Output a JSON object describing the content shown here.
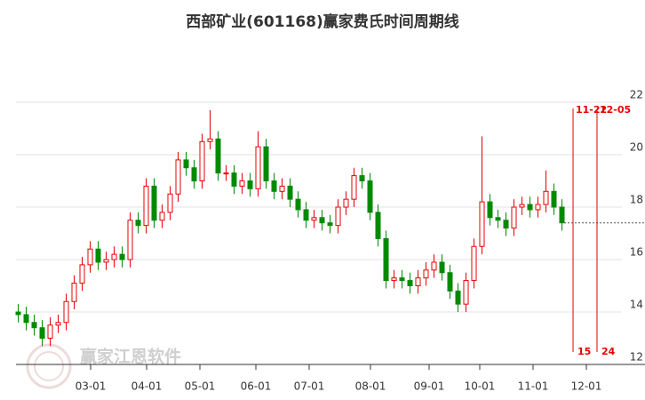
{
  "chart_data": {
    "type": "candlestick",
    "title": "西部矿业(601168)赢家费氏时间周期线",
    "watermark": "赢家江恩软件",
    "up_color": "#e60000",
    "down_color": "#008a00",
    "xlim": [
      0,
      236
    ],
    "ylim": [
      12,
      22
    ],
    "yticks": [
      12,
      14,
      16,
      18,
      20,
      22
    ],
    "xticks": [
      {
        "value": 28,
        "label": "03-01"
      },
      {
        "value": 49,
        "label": "04-01"
      },
      {
        "value": 69,
        "label": "05-01"
      },
      {
        "value": 90,
        "label": "06-01"
      },
      {
        "value": 110,
        "label": "07-01"
      },
      {
        "value": 133,
        "label": "08-01"
      },
      {
        "value": 155,
        "label": "09-01"
      },
      {
        "value": 174,
        "label": "10-01"
      },
      {
        "value": 194,
        "label": "11-01"
      },
      {
        "value": 214,
        "label": "12-01"
      }
    ],
    "grid": true,
    "x": [
      0,
      3,
      6,
      9,
      12,
      15,
      18,
      21,
      24,
      27,
      30,
      33,
      36,
      39,
      42,
      45,
      48,
      51,
      54,
      57,
      60,
      63,
      66,
      69,
      72,
      75,
      78,
      81,
      84,
      87,
      90,
      93,
      96,
      99,
      102,
      105,
      108,
      111,
      114,
      117,
      120,
      123,
      126,
      129,
      132,
      135,
      138,
      141,
      144,
      147,
      150,
      153,
      156,
      159,
      162,
      165,
      168,
      171,
      174,
      177,
      180,
      183,
      186,
      189,
      192,
      195,
      198,
      201,
      204
    ],
    "open": [
      14.0,
      13.9,
      13.6,
      13.4,
      13.0,
      13.5,
      13.6,
      14.4,
      15.1,
      15.8,
      16.4,
      15.9,
      16.0,
      16.2,
      16.0,
      17.5,
      17.3,
      18.8,
      17.5,
      17.8,
      18.5,
      19.8,
      19.5,
      19.0,
      20.5,
      20.6,
      19.3,
      19.3,
      18.8,
      19.0,
      18.7,
      20.3,
      19.0,
      18.6,
      18.8,
      18.3,
      17.9,
      17.5,
      17.6,
      17.4,
      17.3,
      18.0,
      18.3,
      19.2,
      19.0,
      17.8,
      16.8,
      15.2,
      15.3,
      15.2,
      15.0,
      15.3,
      15.6,
      15.9,
      15.5,
      14.8,
      14.3,
      15.2,
      16.5,
      18.2,
      17.6,
      17.5,
      17.2,
      18.0,
      18.1,
      17.9,
      18.1,
      18.6,
      18.0
    ],
    "high": [
      14.3,
      14.2,
      13.9,
      13.7,
      13.8,
      13.9,
      14.7,
      15.4,
      16.1,
      16.7,
      16.7,
      16.3,
      16.5,
      16.5,
      17.8,
      17.8,
      19.1,
      19.1,
      18.1,
      18.8,
      20.1,
      20.1,
      19.8,
      20.8,
      21.7,
      20.9,
      19.6,
      19.6,
      19.3,
      19.3,
      20.9,
      20.6,
      19.3,
      19.1,
      19.1,
      18.6,
      18.2,
      17.9,
      17.9,
      17.7,
      18.3,
      18.6,
      19.5,
      19.5,
      19.3,
      18.1,
      17.1,
      15.6,
      15.6,
      15.5,
      15.6,
      15.9,
      16.2,
      16.2,
      15.8,
      15.1,
      15.5,
      16.8,
      20.7,
      18.5,
      17.9,
      17.8,
      18.3,
      18.4,
      18.4,
      18.4,
      19.4,
      18.9,
      18.3
    ],
    "low": [
      13.6,
      13.3,
      13.1,
      12.7,
      12.7,
      13.2,
      13.3,
      14.1,
      14.8,
      15.5,
      15.6,
      15.6,
      15.7,
      15.7,
      15.7,
      17.0,
      17.0,
      17.2,
      17.2,
      17.5,
      18.2,
      19.2,
      18.7,
      18.7,
      20.2,
      19.0,
      19.0,
      18.5,
      18.5,
      18.4,
      18.4,
      18.7,
      18.3,
      18.3,
      18.0,
      17.6,
      17.2,
      17.2,
      17.1,
      17.0,
      17.0,
      17.7,
      18.0,
      18.7,
      17.5,
      16.5,
      14.9,
      14.9,
      14.9,
      14.7,
      14.7,
      15.0,
      15.3,
      15.2,
      14.5,
      14.0,
      14.0,
      14.9,
      16.2,
      17.3,
      17.2,
      16.9,
      16.9,
      17.7,
      17.6,
      17.6,
      17.8,
      17.7,
      17.1
    ],
    "close": [
      13.9,
      13.6,
      13.4,
      13.0,
      13.5,
      13.6,
      14.4,
      15.1,
      15.8,
      16.4,
      15.9,
      16.0,
      16.2,
      16.0,
      17.5,
      17.3,
      18.8,
      17.5,
      17.8,
      18.5,
      19.8,
      19.5,
      19.0,
      20.5,
      20.6,
      19.3,
      19.3,
      18.8,
      19.0,
      18.7,
      20.3,
      19.0,
      18.6,
      18.8,
      18.3,
      17.9,
      17.5,
      17.6,
      17.4,
      17.3,
      18.0,
      18.3,
      19.2,
      19.0,
      17.8,
      16.8,
      15.2,
      15.3,
      15.2,
      15.0,
      15.3,
      15.6,
      15.9,
      15.5,
      14.8,
      14.3,
      15.2,
      16.5,
      18.2,
      17.6,
      17.5,
      17.2,
      18.0,
      18.1,
      17.9,
      18.1,
      18.6,
      18.0,
      17.4
    ],
    "cycle_lines": [
      {
        "x": 209,
        "label_top": "11-22",
        "label_bottom": "15"
      },
      {
        "x": 218,
        "label_top": "12-05",
        "label_bottom": "24"
      }
    ],
    "cycle_color": "#e60000"
  }
}
